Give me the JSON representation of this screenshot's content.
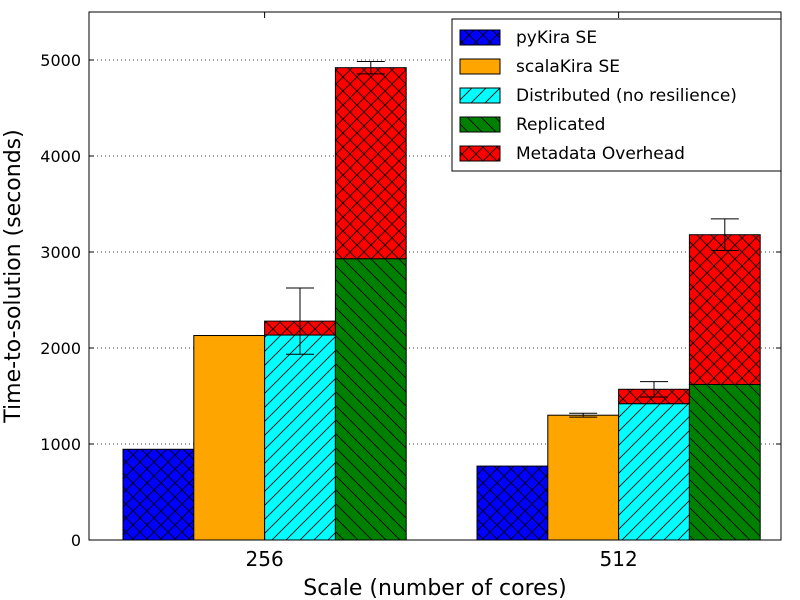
{
  "chart_data": {
    "type": "bar",
    "title": "",
    "xlabel": "Scale (number of cores)",
    "ylabel": "Time-to-solution (seconds)",
    "ylim": [
      0,
      5500
    ],
    "yticks": [
      0,
      1000,
      2000,
      3000,
      4000,
      5000
    ],
    "grid": true,
    "legend_position": "top-right",
    "categories": [
      "256",
      "512"
    ],
    "series": [
      {
        "name": "pyKira SE",
        "color": "#0000ff",
        "hatch": "crosshatch",
        "values": [
          945,
          770
        ],
        "error": [
          null,
          null
        ]
      },
      {
        "name": "scalaKira SE",
        "color": "#ffa500",
        "hatch": "none",
        "values": [
          2130,
          1300
        ],
        "error": [
          null,
          20
        ]
      },
      {
        "name": "Distributed (no resilience)",
        "color": "#00ffff",
        "hatch": "forward-diagonal",
        "values": [
          2135,
          1420
        ],
        "error": [
          null,
          null
        ]
      },
      {
        "name": "Replicated",
        "color": "#008000",
        "hatch": "back-diagonal",
        "values": [
          2930,
          1620
        ],
        "error": [
          null,
          null
        ]
      }
    ],
    "stacked_overhead": {
      "name": "Metadata Overhead",
      "color": "#ff0000",
      "hatch": "crosshatch",
      "on_top_of": [
        "Distributed (no resilience)",
        "Replicated"
      ],
      "totals": {
        "Distributed (no resilience)": [
          2280,
          1570
        ],
        "Replicated": [
          4920,
          3180
        ]
      },
      "error": {
        "Distributed (no resilience)": [
          345,
          80
        ],
        "Replicated": [
          65,
          165
        ]
      }
    }
  }
}
